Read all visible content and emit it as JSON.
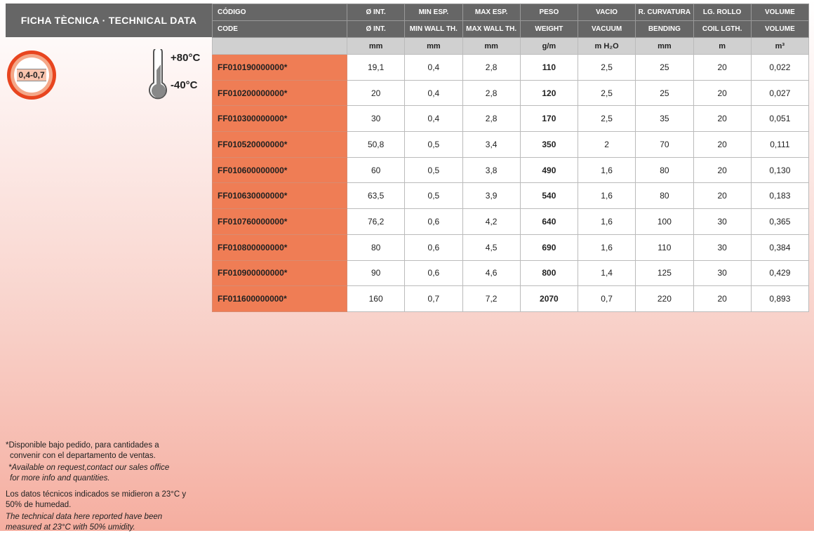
{
  "title": "FICHA TÈCNICA · TECHNICAL DATA",
  "thickness_badge": "0,4-0,7",
  "temperature": {
    "max": "+80°C",
    "min": "-40°C"
  },
  "colors": {
    "header": "#666666",
    "code_cell": "#ef7d55",
    "ring": "#e8451f"
  },
  "table": {
    "headers_es": [
      "CÓDIGO",
      "Ø INT.",
      "MIN ESP.",
      "MAX ESP.",
      "PESO",
      "VACIO",
      "R. CURVATURA",
      "LG. ROLLO",
      "VOLUME"
    ],
    "headers_en": [
      "CODE",
      "Ø INT.",
      "MIN WALL TH.",
      "MAX WALL TH.",
      "WEIGHT",
      "VACUUM",
      "BENDING",
      "COIL LGTH.",
      "VOLUME"
    ],
    "units": [
      "",
      "mm",
      "mm",
      "mm",
      "g/m",
      "m H₂O",
      "mm",
      "m",
      "m³"
    ],
    "rows": [
      [
        "FF010190000000*",
        "19,1",
        "0,4",
        "2,8",
        "110",
        "2,5",
        "25",
        "20",
        "0,022"
      ],
      [
        "FF010200000000*",
        "20",
        "0,4",
        "2,8",
        "120",
        "2,5",
        "25",
        "20",
        "0,027"
      ],
      [
        "FF010300000000*",
        "30",
        "0,4",
        "2,8",
        "170",
        "2,5",
        "35",
        "20",
        "0,051"
      ],
      [
        "FF010520000000*",
        "50,8",
        "0,5",
        "3,4",
        "350",
        "2",
        "70",
        "20",
        "0,111"
      ],
      [
        "FF010600000000*",
        "60",
        "0,5",
        "3,8",
        "490",
        "1,6",
        "80",
        "20",
        "0,130"
      ],
      [
        "FF010630000000*",
        "63,5",
        "0,5",
        "3,9",
        "540",
        "1,6",
        "80",
        "20",
        "0,183"
      ],
      [
        "FF010760000000*",
        "76,2",
        "0,6",
        "4,2",
        "640",
        "1,6",
        "100",
        "30",
        "0,365"
      ],
      [
        "FF010800000000*",
        "80",
        "0,6",
        "4,5",
        "690",
        "1,6",
        "110",
        "30",
        "0,384"
      ],
      [
        "FF010900000000*",
        "90",
        "0,6",
        "4,6",
        "800",
        "1,4",
        "125",
        "30",
        "0,429"
      ],
      [
        "FF011600000000*",
        "160",
        "0,7",
        "7,2",
        "2070",
        "0,7",
        "220",
        "20",
        "0,893"
      ]
    ]
  },
  "notes": {
    "es1a": "*Disponible bajo pedido, para cantidades a",
    "es1b": "convenir con el departamento de ventas.",
    "en1a": "*Available on request,contact our sales office",
    "en1b": "for more info and quantities.",
    "es2": "Los datos técnicos indicados se midieron a 23°C y 50% de humedad.",
    "en2": "The technical data here reported have been measured at 23°C with 50% umidity."
  }
}
